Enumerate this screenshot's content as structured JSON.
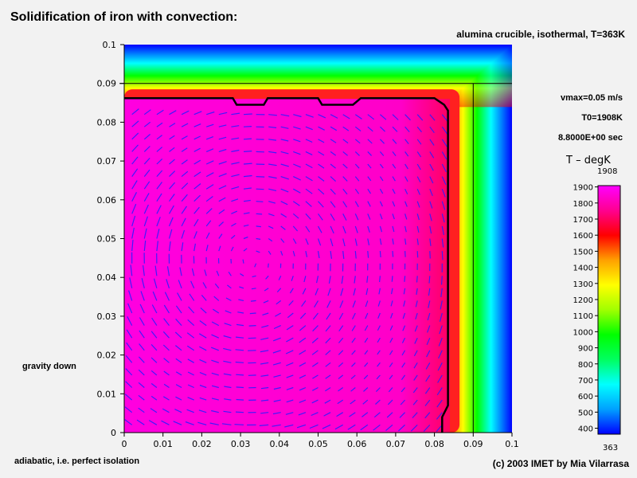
{
  "title": "Solidification of iron with convection:",
  "subtitle": "alumina crucible, isothermal, T=363K",
  "info": {
    "vmax": "vmax=0.05 m/s",
    "t0": "T0=1908K",
    "time": "8.8000E+00 sec"
  },
  "annotations": {
    "gravity": "gravity down",
    "adiabatic": "adiabatic, i.e. perfect isolation",
    "credit": "(c) 2003 IMET by Mia Vilarrasa"
  },
  "colorbar": {
    "title": "T  –  degK",
    "max_label": "1908",
    "min_label": "363",
    "range": [
      363,
      1908
    ],
    "tick_values": [
      400,
      500,
      600,
      700,
      800,
      900,
      1000,
      1100,
      1200,
      1300,
      1400,
      1500,
      1600,
      1700,
      1800,
      1900
    ],
    "colors_low_to_high": [
      "#0000ff",
      "#00a0ff",
      "#00ffff",
      "#00ff60",
      "#00ff00",
      "#a0ff00",
      "#ffff00",
      "#ffa000",
      "#ff0000",
      "#ff0090",
      "#ff00ff"
    ]
  },
  "chart_data": {
    "type": "heatmap",
    "description": "temperature field with velocity vectors",
    "xlim": [
      0,
      0.1
    ],
    "ylim": [
      0,
      0.1
    ],
    "x_ticks": [
      "0",
      "0.01",
      "0.02",
      "0.03",
      "0.04",
      "0.05",
      "0.06",
      "0.07",
      "0.08",
      "0.09",
      "0.1"
    ],
    "y_ticks": [
      "0",
      "0.01",
      "0.02",
      "0.03",
      "0.04",
      "0.05",
      "0.06",
      "0.07",
      "0.08",
      "0.09",
      "0.1"
    ],
    "ref_lines": {
      "x": 0.09,
      "y": 0.09
    },
    "melt_region": {
      "x_max": 0.084,
      "y_max": 0.086,
      "temperature": 1908
    },
    "solidification_front": [
      [
        0.0,
        0.0862
      ],
      [
        0.028,
        0.0862
      ],
      [
        0.029,
        0.0845
      ],
      [
        0.036,
        0.0845
      ],
      [
        0.037,
        0.0862
      ],
      [
        0.05,
        0.0862
      ],
      [
        0.051,
        0.0845
      ],
      [
        0.059,
        0.0845
      ],
      [
        0.061,
        0.0862
      ],
      [
        0.08,
        0.0862
      ],
      [
        0.0825,
        0.0845
      ],
      [
        0.0835,
        0.083
      ],
      [
        0.0835,
        0.007
      ],
      [
        0.082,
        0.004
      ],
      [
        0.082,
        0.0
      ]
    ],
    "vortex_center": [
      0.033,
      0.044
    ],
    "vmax": 0.05
  }
}
